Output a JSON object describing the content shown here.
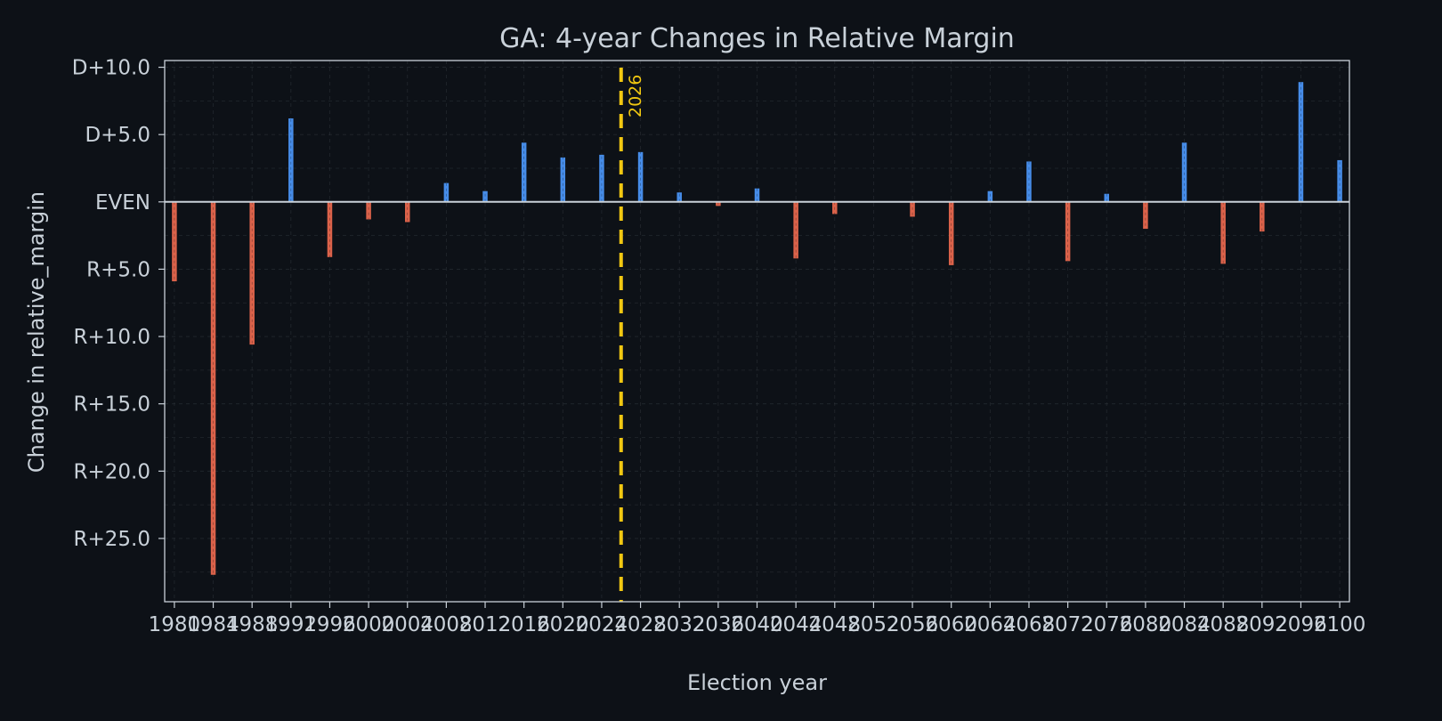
{
  "chart_data": {
    "type": "bar",
    "title": "GA: 4-year Changes in Relative Margin",
    "xlabel": "Election year",
    "ylabel": "Change in relative_margin",
    "ylim": [
      -29.7,
      10.5
    ],
    "xlim": [
      1979,
      2101
    ],
    "y_ticks": [
      {
        "value": 10,
        "label": "D+10.0"
      },
      {
        "value": 5,
        "label": "D+5.0"
      },
      {
        "value": 0,
        "label": "EVEN"
      },
      {
        "value": -5,
        "label": "R+5.0"
      },
      {
        "value": -10,
        "label": "R+10.0"
      },
      {
        "value": -15,
        "label": "R+15.0"
      },
      {
        "value": -20,
        "label": "R+20.0"
      },
      {
        "value": -25,
        "label": "R+25.0"
      }
    ],
    "x_ticks": [
      1980,
      1984,
      1988,
      1992,
      1996,
      2000,
      2004,
      2008,
      2012,
      2016,
      2020,
      2024,
      2028,
      2032,
      2036,
      2040,
      2044,
      2048,
      2052,
      2056,
      2060,
      2064,
      2068,
      2072,
      2076,
      2080,
      2084,
      2088,
      2092,
      2096,
      2100
    ],
    "x": [
      1980,
      1984,
      1988,
      1992,
      1996,
      2000,
      2004,
      2008,
      2012,
      2016,
      2020,
      2024,
      2028,
      2032,
      2036,
      2040,
      2044,
      2048,
      2052,
      2056,
      2060,
      2064,
      2068,
      2072,
      2076,
      2080,
      2084,
      2088,
      2092,
      2096,
      2100
    ],
    "values": [
      -5.9,
      -27.7,
      -10.6,
      6.2,
      -4.1,
      -1.3,
      -1.5,
      1.4,
      0.8,
      4.4,
      3.3,
      3.5,
      3.7,
      0.7,
      -0.3,
      1.0,
      -4.2,
      -0.9,
      0,
      -1.1,
      -4.7,
      0.8,
      3.0,
      -4.4,
      0.6,
      -2.0,
      4.4,
      -4.6,
      -2.2,
      8.9,
      3.1
    ],
    "colors": {
      "positive": "#4c9aff",
      "negative": "#f26b50",
      "reference": "#f2c811",
      "background": "#0d1117",
      "grid": "#30363d",
      "text": "#c9d1d9"
    },
    "reference_line": {
      "x": 2026,
      "label": "2026"
    },
    "grid": true
  }
}
